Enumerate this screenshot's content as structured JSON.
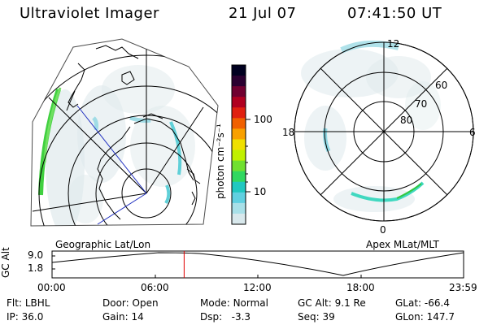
{
  "header": {
    "instrument": "Ultraviolet Imager",
    "date": "21 Jul 07",
    "time": "07:41:50 UT"
  },
  "geo_panel": {
    "label": "Geographic Lat/Lon"
  },
  "apex_panel": {
    "label": "Apex MLat/MLT",
    "mlt_labels": {
      "top": "12",
      "right": "6",
      "bottom": "0",
      "left": "18"
    },
    "lat_labels": [
      "60",
      "70",
      "80"
    ]
  },
  "colorbar": {
    "unit": "photon cm⁻²s⁻¹",
    "ticks": [
      "100",
      "10"
    ],
    "colors": [
      "#000020",
      "#2a0030",
      "#700030",
      "#b00020",
      "#e02010",
      "#f06000",
      "#f8a000",
      "#f0e000",
      "#c0f000",
      "#70e030",
      "#30d860",
      "#20c8c0",
      "#60d0e0",
      "#a8e0e8",
      "#d8e8ec"
    ]
  },
  "alt_strip": {
    "ylabel": "GC Alt",
    "y_ticks": [
      "9.0",
      "1.8"
    ],
    "x_ticks": [
      "00:00",
      "06:00",
      "12:00",
      "18:00",
      "23:59"
    ],
    "cursor_time": "07:41:50",
    "cursor_color": "#e00000"
  },
  "info": {
    "row1": [
      {
        "label": "Flt:",
        "value": "LBHL"
      },
      {
        "label": "Door:",
        "value": "Open"
      },
      {
        "label": "Mode:",
        "value": "Normal"
      },
      {
        "label": "GC Alt:",
        "value": "9.1 Re"
      },
      {
        "label": "GLat:",
        "value": "-66.4"
      }
    ],
    "row2": [
      {
        "label": "IP:",
        "value": "36.0"
      },
      {
        "label": "Gain:",
        "value": "14"
      },
      {
        "label": "Dsp:",
        "value": "-3.3"
      },
      {
        "label": "Seq:",
        "value": "39"
      },
      {
        "label": "GLon:",
        "value": "147.7"
      }
    ]
  }
}
